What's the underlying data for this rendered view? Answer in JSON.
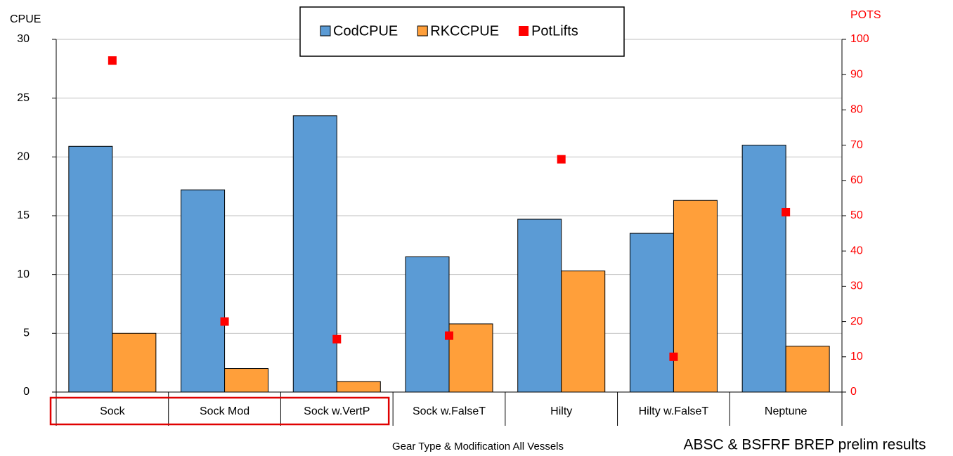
{
  "chart_data": {
    "type": "bar",
    "y_label": "CPUE",
    "y2_label": "POTS",
    "x_label": "Gear Type & Modification All Vessels",
    "note": "ABSC & BSFRF BREP prelim results",
    "categories": [
      "Sock",
      "Sock Mod",
      "Sock w.VertP",
      "Sock w.FalseT",
      "Hilty",
      "Hilty w.FalseT",
      "Neptune"
    ],
    "series": [
      {
        "name": "CodCPUE",
        "color": "#5b9bd5",
        "values": [
          20.9,
          17.2,
          23.5,
          11.5,
          14.7,
          13.5,
          21.0
        ]
      },
      {
        "name": "RKCCPUE",
        "color": "#ff9f3a",
        "values": [
          5.0,
          2.0,
          0.9,
          5.8,
          10.3,
          16.3,
          3.9
        ]
      },
      {
        "name": "PotLifts",
        "color": "#ff0000",
        "type": "scatter",
        "axis": "y2",
        "values": [
          94,
          20,
          15,
          16,
          66,
          10,
          51
        ]
      }
    ],
    "ylim": [
      0,
      30
    ],
    "yticks": [
      0,
      5,
      10,
      15,
      20,
      25,
      30
    ],
    "y2lim": [
      0,
      100
    ],
    "y2ticks": [
      0,
      10,
      20,
      30,
      40,
      50,
      60,
      70,
      80,
      90,
      100
    ],
    "y2color": "#ff0000",
    "grid": true,
    "legend": "top"
  }
}
